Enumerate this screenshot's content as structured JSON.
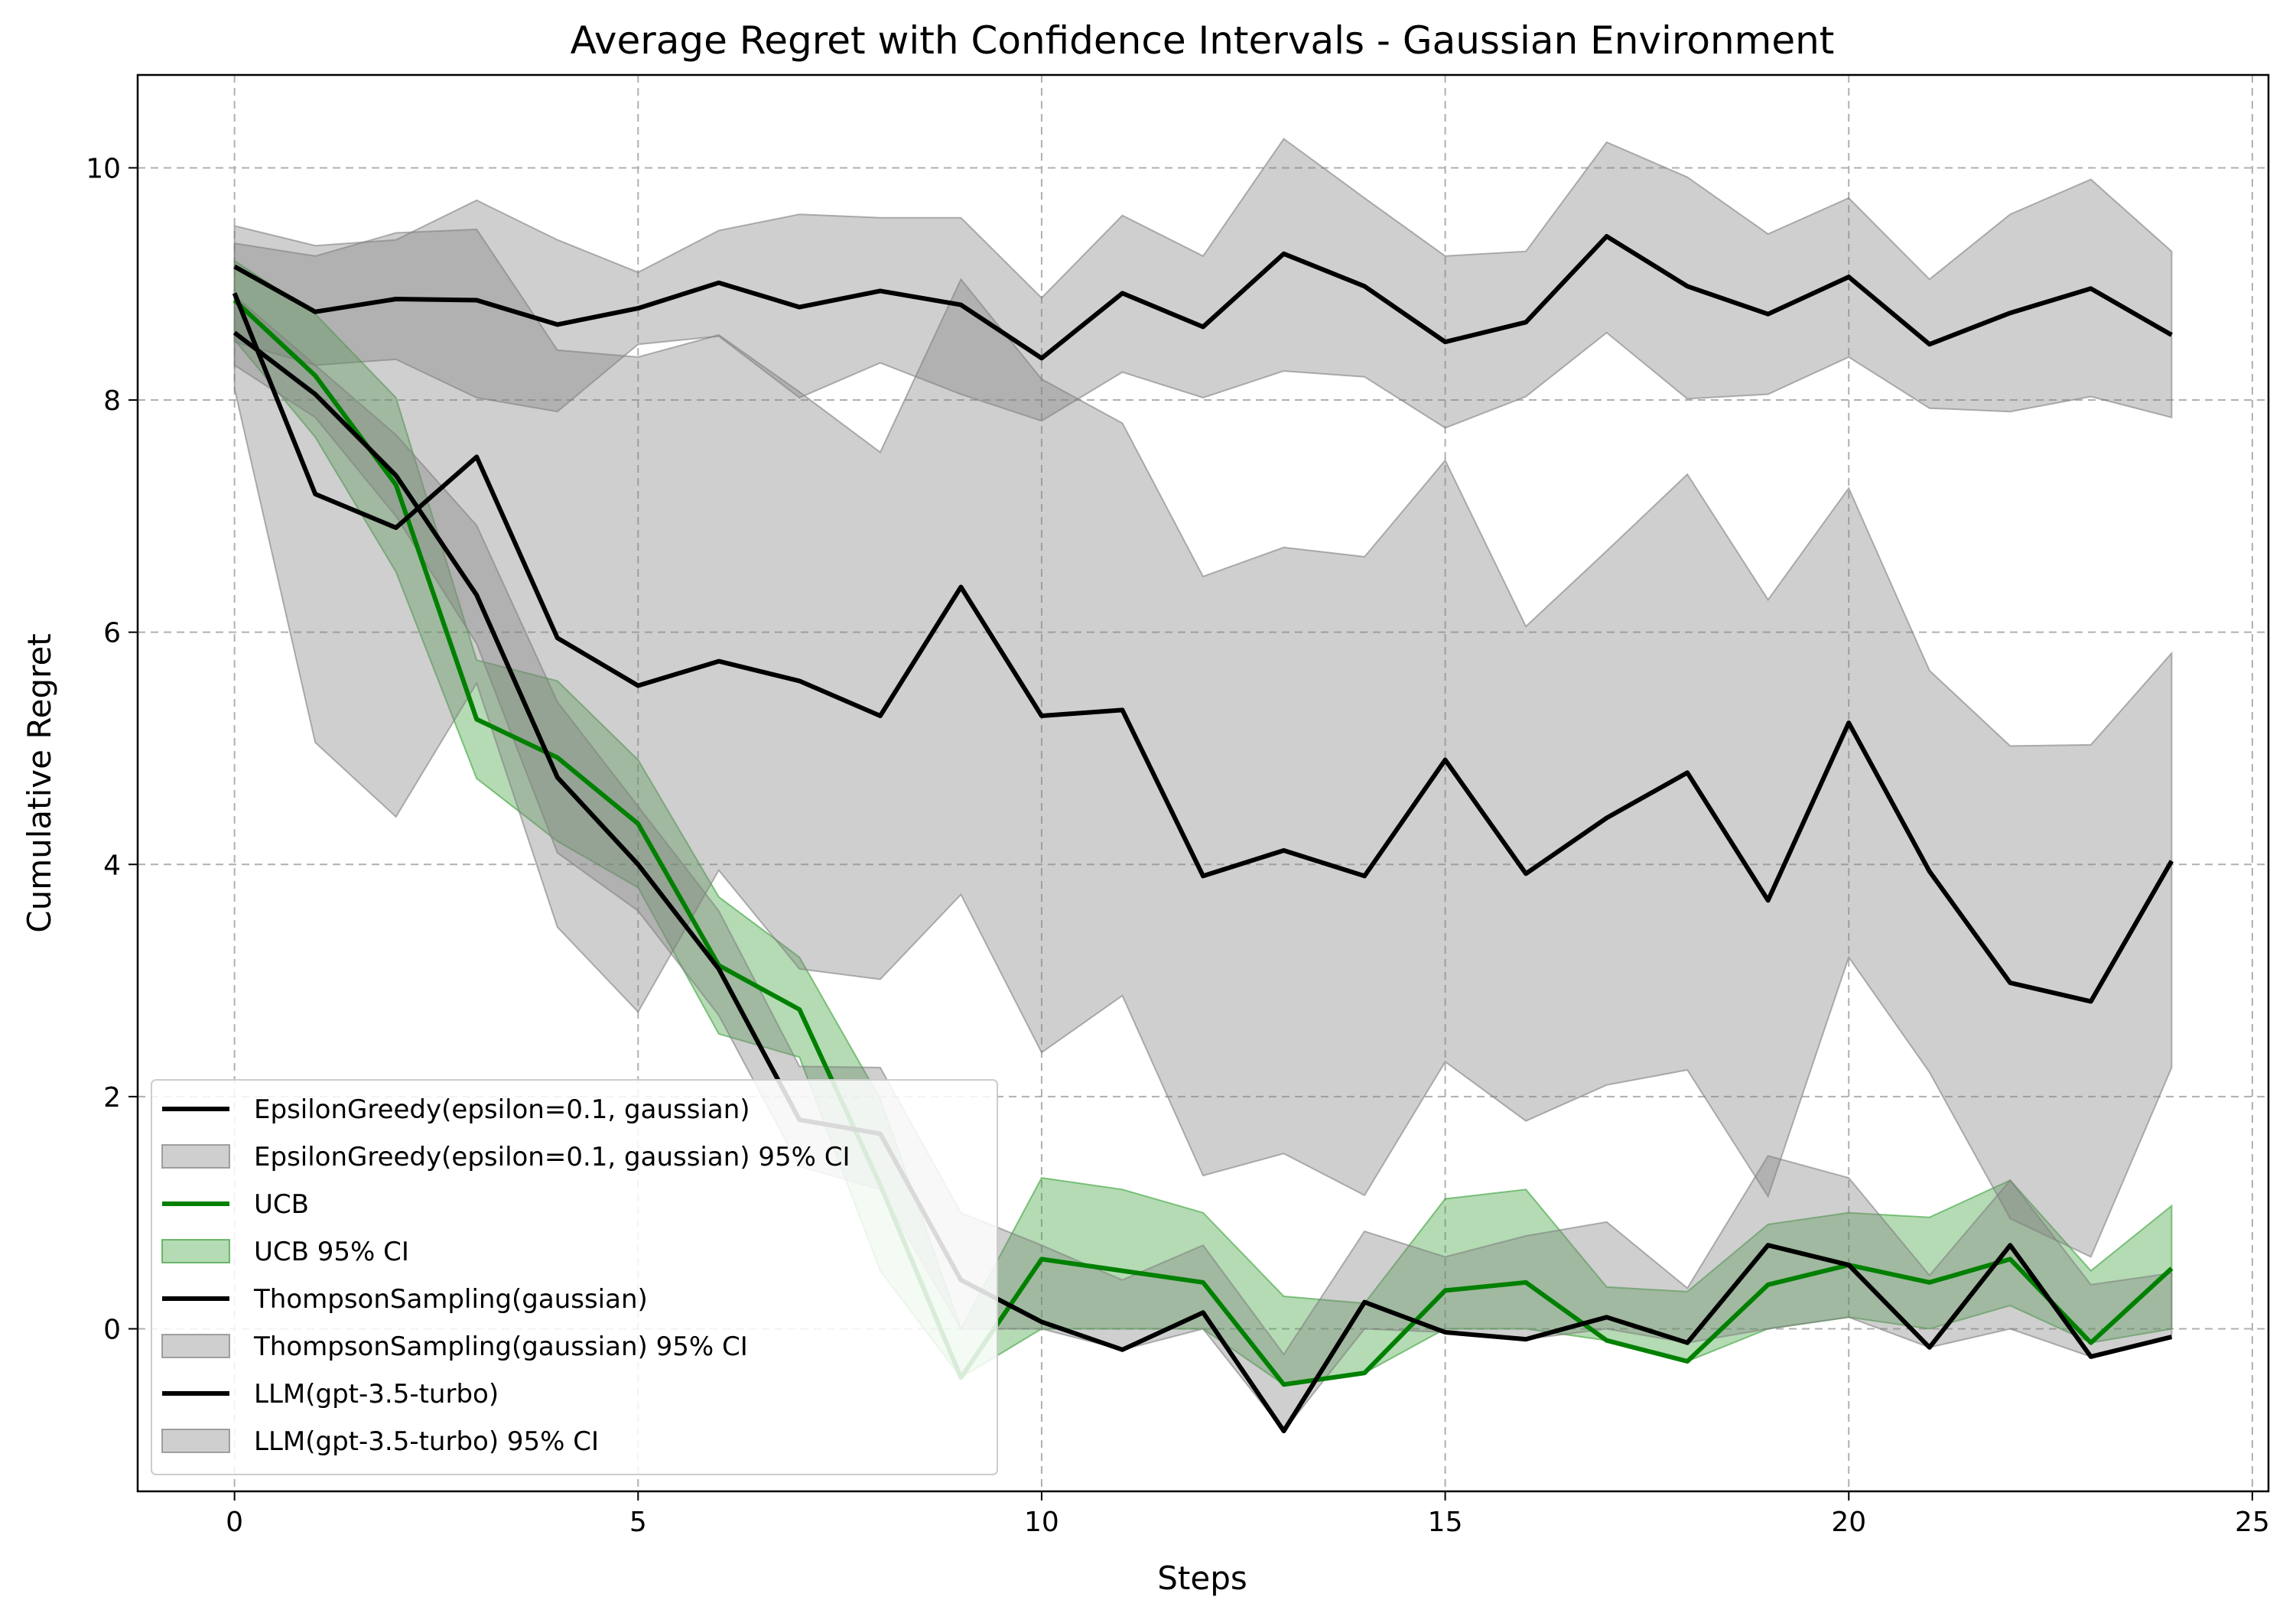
{
  "chart_data": {
    "type": "line",
    "title": "Average Regret with Confidence Intervals - Gaussian Environment",
    "xlabel": "Steps",
    "ylabel": "Cumulative Regret",
    "xlim": [
      -1.2,
      25.2
    ],
    "ylim": [
      -1.4,
      10.8
    ],
    "xticks": [
      0,
      5,
      10,
      15,
      20,
      25
    ],
    "yticks": [
      0,
      2,
      4,
      6,
      8,
      10
    ],
    "grid": true,
    "legend_position": "lower-left",
    "x": [
      0,
      1,
      2,
      3,
      4,
      5,
      6,
      7,
      8,
      9,
      10,
      11,
      12,
      13,
      14,
      15,
      16,
      17,
      18,
      19,
      20,
      21,
      22,
      23,
      24
    ],
    "series": [
      {
        "name": "EpsilonGreedy(epsilon=0.1, gaussian)",
        "ci_name": "EpsilonGreedy(epsilon=0.1, gaussian) 95% CI",
        "color": "#000000",
        "fill": "#808080",
        "values": [
          9.15,
          8.76,
          8.87,
          8.86,
          8.65,
          8.79,
          9.01,
          8.8,
          8.94,
          8.82,
          8.36,
          8.92,
          8.63,
          9.26,
          8.98,
          8.5,
          8.67,
          9.41,
          8.98,
          8.74,
          9.06,
          8.48,
          8.75,
          8.96,
          8.56
        ],
        "lower": [
          8.5,
          8.3,
          8.35,
          8.02,
          7.9,
          8.48,
          8.55,
          8.02,
          8.32,
          8.05,
          7.82,
          8.24,
          8.02,
          8.25,
          8.2,
          7.76,
          8.03,
          8.58,
          8.01,
          8.05,
          8.37,
          7.93,
          7.9,
          8.03,
          7.85
        ],
        "upper": [
          9.5,
          9.33,
          9.38,
          9.72,
          9.38,
          9.1,
          9.46,
          9.6,
          9.57,
          9.57,
          8.88,
          9.59,
          9.24,
          10.25,
          9.74,
          9.24,
          9.28,
          10.22,
          9.92,
          9.43,
          9.74,
          9.04,
          9.6,
          9.9,
          9.28
        ]
      },
      {
        "name": "UCB",
        "ci_name": "UCB 95% CI",
        "color": "#008000",
        "fill": "#3aa13a",
        "values": [
          8.86,
          8.21,
          7.27,
          5.25,
          4.92,
          4.35,
          3.13,
          2.75,
          1.24,
          -0.42,
          0.6,
          0.5,
          0.4,
          -0.48,
          -0.38,
          0.33,
          0.4,
          -0.1,
          -0.28,
          0.38,
          0.55,
          0.4,
          0.6,
          -0.12,
          0.52
        ],
        "lower": [
          8.52,
          7.68,
          6.52,
          4.74,
          4.2,
          3.8,
          2.54,
          2.34,
          0.5,
          -0.42,
          0.0,
          0.0,
          0.0,
          -0.48,
          -0.38,
          0.0,
          0.0,
          -0.1,
          -0.28,
          0.0,
          0.1,
          0.0,
          0.2,
          -0.12,
          0.0
        ],
        "upper": [
          9.2,
          8.74,
          8.02,
          5.76,
          5.58,
          4.9,
          3.72,
          3.2,
          1.98,
          0.0,
          1.3,
          1.2,
          1.0,
          0.28,
          0.22,
          1.12,
          1.2,
          0.36,
          0.32,
          0.9,
          1.0,
          0.96,
          1.28,
          0.5,
          1.06
        ]
      },
      {
        "name": "ThompsonSampling(gaussian)",
        "ci_name": "ThompsonSampling(gaussian) 95% CI",
        "color": "#000000",
        "fill": "#808080",
        "values": [
          8.58,
          8.05,
          7.35,
          6.32,
          4.75,
          4.0,
          3.1,
          1.8,
          1.68,
          0.42,
          0.06,
          -0.18,
          0.14,
          -0.88,
          0.23,
          -0.03,
          -0.09,
          0.1,
          -0.12,
          0.72,
          0.55,
          -0.16,
          0.72,
          -0.24,
          -0.07
        ],
        "lower": [
          8.3,
          7.85,
          7.0,
          5.9,
          4.1,
          3.6,
          2.7,
          1.4,
          1.2,
          0.0,
          0.0,
          -0.18,
          0.0,
          -0.88,
          0.0,
          -0.03,
          -0.09,
          0.0,
          -0.12,
          0.0,
          0.1,
          -0.16,
          0.0,
          -0.24,
          -0.07
        ],
        "upper": [
          8.9,
          8.3,
          7.7,
          6.92,
          5.4,
          4.5,
          3.6,
          2.26,
          2.25,
          1.0,
          0.72,
          0.42,
          0.72,
          -0.22,
          0.84,
          0.62,
          0.8,
          0.92,
          0.35,
          1.49,
          1.3,
          0.46,
          1.28,
          0.38,
          0.48
        ]
      },
      {
        "name": "LLM(gpt-3.5-turbo)",
        "ci_name": "LLM(gpt-3.5-turbo) 95% CI",
        "color": "#000000",
        "fill": "#808080",
        "values": [
          8.92,
          7.19,
          6.9,
          7.51,
          5.95,
          5.54,
          5.75,
          5.58,
          5.28,
          6.39,
          5.28,
          5.33,
          3.9,
          4.12,
          3.9,
          4.9,
          3.92,
          4.4,
          4.79,
          3.69,
          5.22,
          3.94,
          2.98,
          2.82,
          4.03
        ],
        "lower": [
          8.1,
          5.05,
          4.41,
          5.56,
          3.46,
          2.73,
          3.95,
          3.1,
          3.01,
          3.74,
          2.38,
          2.87,
          1.32,
          1.51,
          1.15,
          2.3,
          1.79,
          2.1,
          2.23,
          1.14,
          3.2,
          2.21,
          0.95,
          0.62,
          2.25
        ],
        "upper": [
          9.35,
          9.24,
          9.44,
          9.47,
          8.43,
          8.37,
          8.56,
          8.07,
          7.55,
          9.04,
          8.18,
          7.8,
          6.48,
          6.73,
          6.65,
          7.48,
          6.05,
          6.7,
          7.36,
          6.28,
          7.24,
          5.67,
          5.02,
          5.03,
          5.82
        ]
      }
    ]
  }
}
